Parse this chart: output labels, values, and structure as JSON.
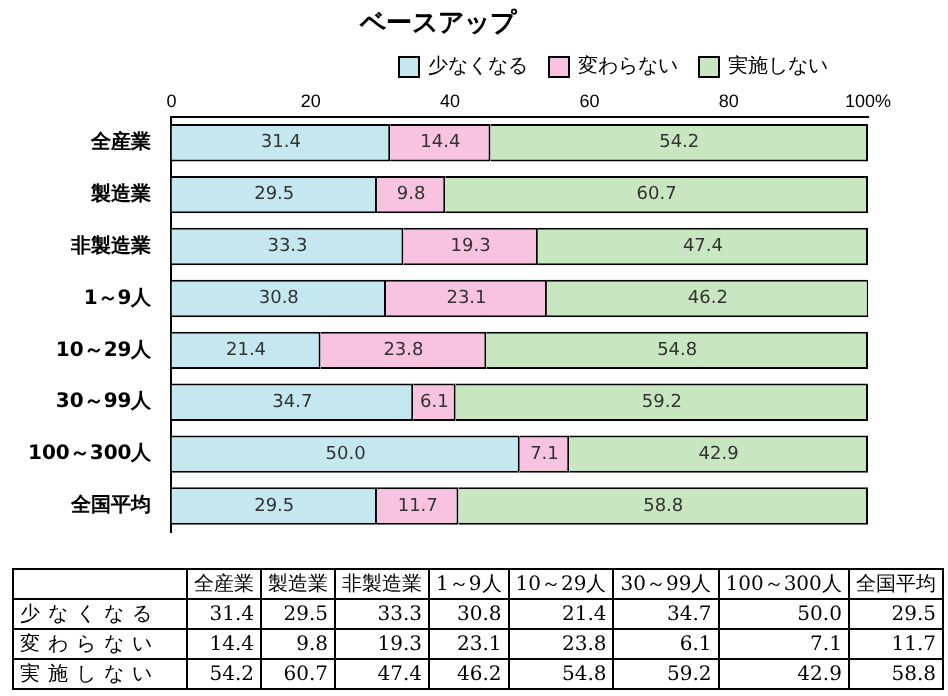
{
  "chart_data": {
    "type": "bar",
    "orientation": "horizontal",
    "stacked": true,
    "title": "ベースアップ",
    "categories": [
      "全産業",
      "製造業",
      "非製造業",
      "1～9人",
      "10～29人",
      "30～99人",
      "100～300人",
      "全国平均"
    ],
    "series": [
      {
        "name": "少なくなる",
        "color": "#c5e8f0",
        "values": [
          31.4,
          29.5,
          33.3,
          30.8,
          21.4,
          34.7,
          50.0,
          29.5
        ],
        "value_labels": [
          "31.4",
          "29.5",
          "33.3",
          "30.8",
          "21.4",
          "34.7",
          "50.0",
          "29.5"
        ]
      },
      {
        "name": "変わらない",
        "color": "#f7c3e0",
        "values": [
          14.4,
          9.8,
          19.3,
          23.1,
          23.8,
          6.1,
          7.1,
          11.7
        ],
        "value_labels": [
          "14.4",
          "9.8",
          "19.3",
          "23.1",
          "23.8",
          "6.1",
          "7.1",
          "11.7"
        ]
      },
      {
        "name": "実施しない",
        "color": "#c8e6bf",
        "values": [
          54.2,
          60.7,
          47.4,
          46.2,
          54.8,
          59.2,
          42.9,
          58.8
        ],
        "value_labels": [
          "54.2",
          "60.7",
          "47.4",
          "46.2",
          "54.8",
          "59.2",
          "42.9",
          "58.8"
        ]
      }
    ],
    "xlim": [
      0,
      100
    ],
    "xticks": [
      0,
      20,
      40,
      60,
      80,
      {
        "value": 100,
        "label": "100%"
      }
    ],
    "grid": false,
    "legend": "top right"
  }
}
